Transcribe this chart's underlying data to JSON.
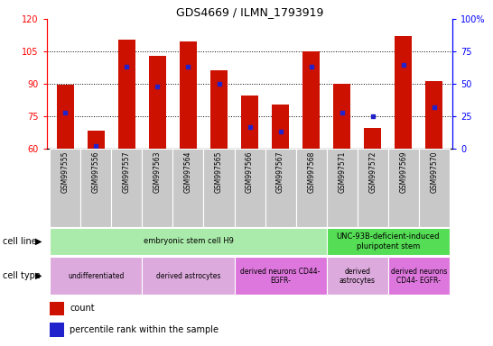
{
  "title": "GDS4669 / ILMN_1793919",
  "samples": [
    "GSM997555",
    "GSM997556",
    "GSM997557",
    "GSM997563",
    "GSM997564",
    "GSM997565",
    "GSM997566",
    "GSM997567",
    "GSM997568",
    "GSM997571",
    "GSM997572",
    "GSM997569",
    "GSM997570"
  ],
  "counts": [
    89.5,
    68.5,
    110.5,
    103.0,
    109.5,
    96.5,
    84.5,
    80.5,
    105.0,
    90.0,
    69.5,
    112.0,
    91.5
  ],
  "percentiles": [
    28,
    2,
    63,
    48,
    63,
    50,
    17,
    13,
    63,
    28,
    25,
    65,
    32
  ],
  "ylim_left": [
    60,
    120
  ],
  "ylim_right": [
    0,
    100
  ],
  "yticks_left": [
    60,
    75,
    90,
    105,
    120
  ],
  "yticks_right": [
    0,
    25,
    50,
    75,
    100
  ],
  "ytick_labels_right": [
    "0",
    "25",
    "50",
    "75",
    "100%"
  ],
  "bar_color": "#cc1100",
  "marker_color": "#2222cc",
  "bg_color": "white",
  "cell_line_groups": [
    {
      "label": "embryonic stem cell H9",
      "start": 0,
      "end": 9,
      "color": "#aaeaaa"
    },
    {
      "label": "UNC-93B-deficient-induced\npluripotent stem",
      "start": 9,
      "end": 13,
      "color": "#55dd55"
    }
  ],
  "cell_type_groups": [
    {
      "label": "undifferentiated",
      "start": 0,
      "end": 3,
      "color": "#ddaadd"
    },
    {
      "label": "derived astrocytes",
      "start": 3,
      "end": 6,
      "color": "#ddaadd"
    },
    {
      "label": "derived neurons CD44-\nEGFR-",
      "start": 6,
      "end": 9,
      "color": "#dd77dd"
    },
    {
      "label": "derived\nastrocytes",
      "start": 9,
      "end": 11,
      "color": "#ddaadd"
    },
    {
      "label": "derived neurons\nCD44- EGFR-",
      "start": 11,
      "end": 13,
      "color": "#dd77dd"
    }
  ],
  "cell_line_row_label": "cell line",
  "cell_type_row_label": "cell type",
  "legend_count_label": "count",
  "legend_pct_label": "percentile rank within the sample"
}
